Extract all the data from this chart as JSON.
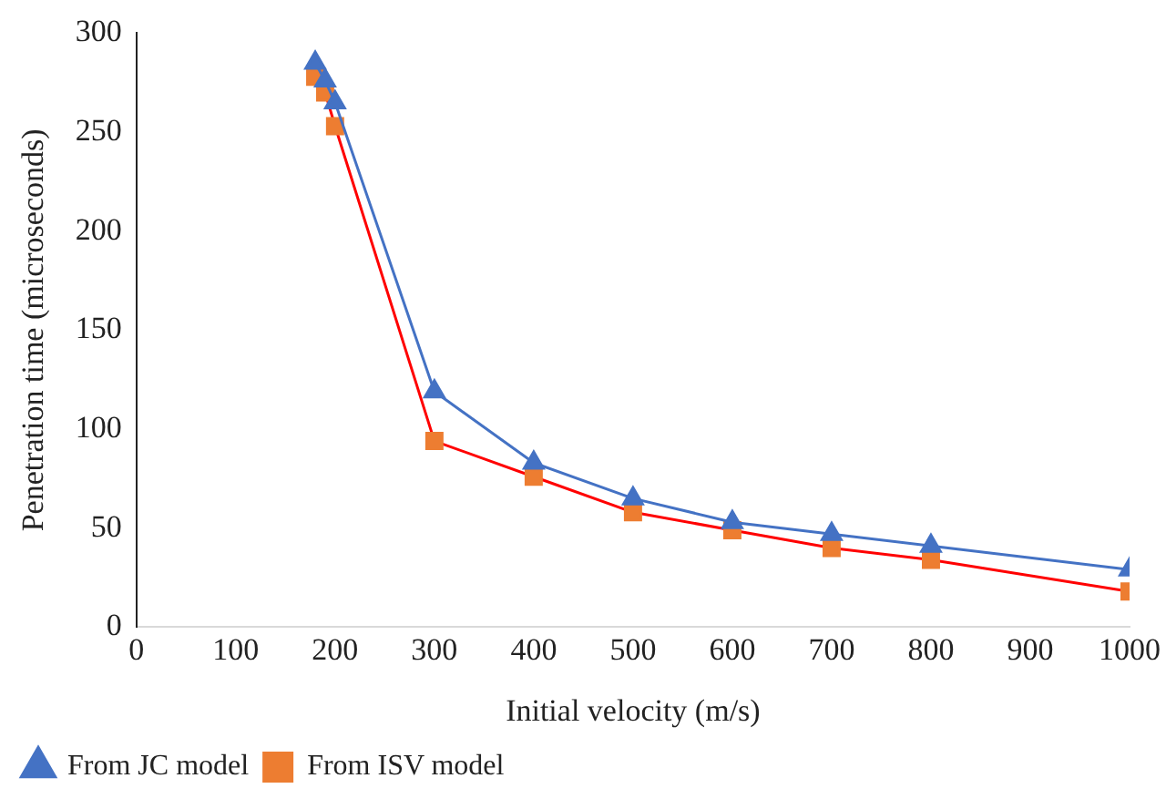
{
  "chart_data": {
    "type": "line",
    "xlabel": "Initial velocity (m/s)",
    "ylabel": "Penetration time (microseconds)",
    "x": [
      180,
      190,
      200,
      300,
      400,
      500,
      600,
      700,
      800,
      1000
    ],
    "series": [
      {
        "name": "From JC model",
        "color": "#4472c4",
        "marker": "triangle",
        "values": [
          285,
          276,
          265,
          119,
          83,
          65,
          53,
          47,
          41,
          29
        ]
      },
      {
        "name": "From ISV model",
        "color": "#ff0000",
        "colors": [
          "#ed7d31",
          "#ed7d31",
          "#ed7d31",
          "#ed7d31",
          "#ed7d31",
          "#ed7d31",
          "#ed7d31",
          "#ed7d31",
          "#ed7d31",
          "#ed7d31"
        ],
        "marker": "square",
        "values": [
          278,
          270,
          253,
          94,
          76,
          58,
          49,
          40,
          34,
          18
        ]
      }
    ],
    "xlim": [
      0,
      1000
    ],
    "xticks": [
      0,
      100,
      200,
      300,
      400,
      500,
      600,
      700,
      800,
      900,
      1000
    ],
    "ylim": [
      0,
      300
    ],
    "yticks": [
      0,
      50,
      100,
      150,
      200,
      250,
      300
    ],
    "grid": false,
    "legend": "bottom left",
    "line_style": "solid"
  }
}
